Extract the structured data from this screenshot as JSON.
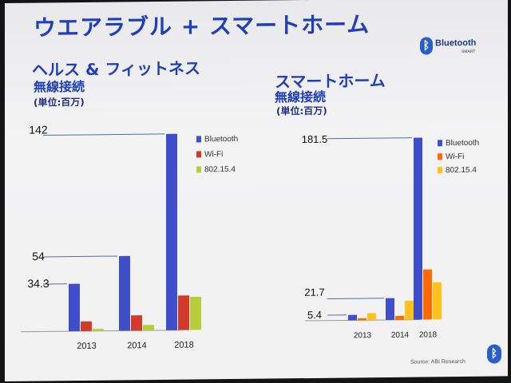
{
  "title": "ウエアラブル + スマートホーム",
  "logo": {
    "rune": "ᛒ",
    "word": "Bluetooth",
    "sub": "SMART"
  },
  "left_heading": {
    "line1": "ヘルス & フィットネス",
    "line2": "無線接続",
    "line3": "(単位:百万)"
  },
  "right_heading": {
    "line1": "スマートホーム",
    "line2": "無線接続",
    "line3": "(単位:百万)"
  },
  "source": "Source: ABI Research",
  "colors": {
    "Bluetooth": "#3f4fc9",
    "Wi-Fi": "#d23a2a",
    "802.15.4": "#b9cc3c"
  },
  "chart_data": [
    {
      "type": "bar",
      "title": "ヘルス & フィットネス 無線接続",
      "categories": [
        "2013",
        "2014",
        "2018"
      ],
      "series": [
        {
          "name": "Bluetooth",
          "values": [
            34.3,
            54,
            142
          ],
          "color": "#3f4fc9"
        },
        {
          "name": "Wi-Fi",
          "values": [
            7,
            11,
            25
          ],
          "color": "#d23a2a"
        },
        {
          "name": "802.15.4",
          "values": [
            1.5,
            4,
            24
          ],
          "color": "#b9cc3c"
        }
      ],
      "annotations": [
        "142",
        "54",
        "34.3"
      ],
      "ylim": [
        0,
        142
      ],
      "legend": "right"
    },
    {
      "type": "bar",
      "title": "スマートホーム 無線接続",
      "categories": [
        "2013",
        "2014",
        "2018"
      ],
      "series": [
        {
          "name": "Bluetooth",
          "values": [
            5.4,
            21.7,
            181.5
          ],
          "color": "#3f4fc9"
        },
        {
          "name": "Wi-Fi",
          "values": [
            2,
            4,
            50
          ],
          "color": "#ff6a00"
        },
        {
          "name": "802.15.4",
          "values": [
            7,
            19,
            37
          ],
          "color": "#ffc21a"
        }
      ],
      "annotations": [
        "181.5",
        "21.7",
        "5.4"
      ],
      "ylim": [
        0,
        181.5
      ],
      "legend": "right"
    }
  ]
}
